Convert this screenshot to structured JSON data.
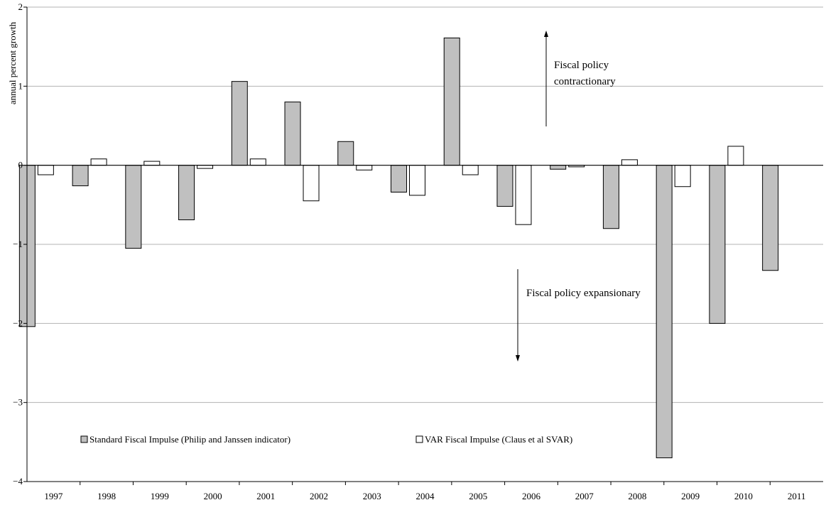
{
  "chart_data": {
    "type": "bar",
    "ylabel": "annual percent growth",
    "xlabel": "",
    "title": "",
    "ylim": [
      -4,
      2
    ],
    "yticks": [
      2,
      1,
      0,
      -1,
      -2,
      -3,
      -4
    ],
    "grid": true,
    "legend_position": "bottom-left",
    "categories": [
      "1997",
      "1998",
      "1999",
      "2000",
      "2001",
      "2002",
      "2003",
      "2004",
      "2005",
      "2006",
      "2007",
      "2008",
      "2009",
      "2010",
      "2011"
    ],
    "series": [
      {
        "name": "Standard Fiscal Impulse (Philip and Janssen indicator)",
        "color": "#c0c0c0",
        "values": [
          -2.04,
          -0.26,
          -1.05,
          -0.69,
          1.06,
          0.8,
          0.3,
          -0.34,
          1.61,
          -0.52,
          -0.05,
          -0.8,
          -3.7,
          -2.0,
          -1.33
        ]
      },
      {
        "name": "VAR Fiscal Impulse (Claus et al SVAR)",
        "color": "#ffffff",
        "values": [
          -0.12,
          0.08,
          0.05,
          -0.04,
          0.08,
          -0.45,
          -0.06,
          -0.38,
          -0.12,
          -0.75,
          -0.02,
          0.07,
          -0.27,
          0.24,
          null
        ]
      }
    ],
    "annotations": [
      {
        "id": "contractionary",
        "lines": [
          "Fiscal policy",
          "contractionary"
        ],
        "direction": "up"
      },
      {
        "id": "expansionary",
        "lines": [
          "Fiscal policy expansionary"
        ],
        "direction": "down"
      }
    ]
  }
}
